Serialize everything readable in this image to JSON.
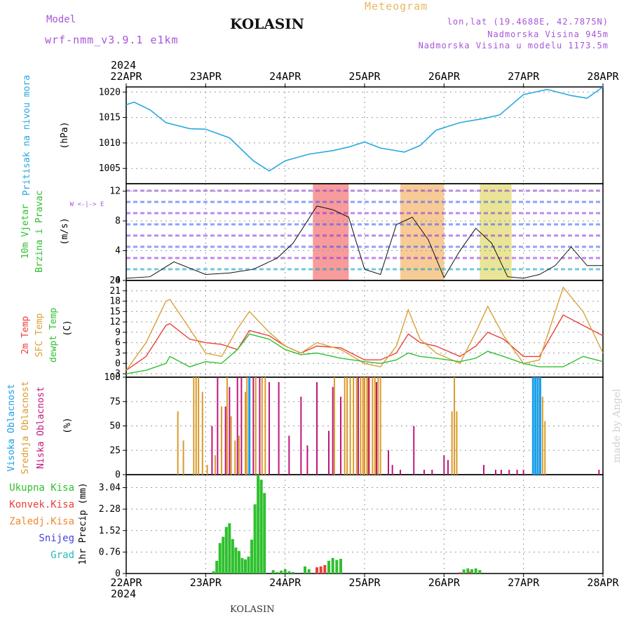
{
  "header": {
    "model_label": "Model",
    "model_name": "wrf-nmm_v3.9.1 e1km",
    "station": "KOLASIN",
    "meteogram_label": "Meteogram",
    "lonlat": "lon,lat (19.4688E, 42.7875N)",
    "altitude": "Nadmorska Visina 945m",
    "model_altitude": "Nadmorska Visina u modelu 1173.5m"
  },
  "footer_station": "KOLASIN",
  "watermark": "made by Angel",
  "colors": {
    "pressure": "#29a8e0",
    "temp2m": "#e8403a",
    "sfctemp": "#d9a13a",
    "dewpt": "#2ec02e",
    "high_cloud": "#1a9ee8",
    "mid_cloud": "#d99a2b",
    "low_cloud": "#c0167a",
    "precip_total": "#2ec02e",
    "precip_conv": "#e8403a",
    "precip_frozen": "#f08a30",
    "snow": "#4444dd",
    "graupel": "#22bbbb",
    "wind_speed_line": "#111111"
  },
  "time_axis": {
    "year_top": "2024",
    "year_bottom": "2024",
    "days": [
      "22APR",
      "23APR",
      "24APR",
      "25APR",
      "26APR",
      "27APR",
      "28APR"
    ]
  },
  "chart_data": [
    {
      "type": "line",
      "name": "pressure",
      "ylabels": [
        "Pritisak na nivou mora",
        "(hPa)"
      ],
      "ylim": [
        1002,
        1021
      ],
      "yticks": [
        1005,
        1010,
        1015,
        1020
      ],
      "x": [
        0,
        0.1,
        0.3,
        0.5,
        0.8,
        1.0,
        1.3,
        1.6,
        1.8,
        2.0,
        2.3,
        2.6,
        2.8,
        3.0,
        3.2,
        3.5,
        3.7,
        3.9,
        4.2,
        4.5,
        4.7,
        5.0,
        5.3,
        5.6,
        5.8,
        6.0
      ],
      "values": [
        1017.5,
        1018.0,
        1016.5,
        1014.0,
        1012.8,
        1012.7,
        1011.0,
        1006.5,
        1004.5,
        1006.5,
        1007.8,
        1008.5,
        1009.2,
        1010.2,
        1009.0,
        1008.2,
        1009.5,
        1012.5,
        1014.0,
        1014.8,
        1015.5,
        1019.5,
        1020.5,
        1019.3,
        1018.8,
        1021.0
      ],
      "grid": true
    },
    {
      "type": "line",
      "name": "wind_speed",
      "ylabels": [
        "10m Vjetar",
        "Brzina i Pravac",
        "(m/s)"
      ],
      "direction_legend": "W <-|-> E",
      "ylim": [
        0,
        13
      ],
      "yticks": [
        0,
        4,
        8,
        12
      ],
      "x": [
        0,
        0.3,
        0.6,
        1.0,
        1.3,
        1.6,
        1.9,
        2.1,
        2.4,
        2.6,
        2.8,
        3.0,
        3.2,
        3.4,
        3.6,
        3.8,
        4.0,
        4.2,
        4.4,
        4.6,
        4.8,
        5.0,
        5.2,
        5.4,
        5.6,
        5.8,
        6.0
      ],
      "values": [
        0.3,
        0.5,
        2.5,
        0.8,
        1.0,
        1.5,
        3.0,
        5.0,
        10.0,
        9.5,
        8.5,
        1.5,
        0.8,
        7.5,
        8.5,
        5.5,
        0.4,
        4.0,
        7.0,
        5.0,
        0.5,
        0.3,
        0.8,
        2.0,
        4.5,
        2.0,
        2.0
      ],
      "shaded_spans": [
        [
          2.35,
          2.8
        ],
        [
          3.45,
          4.0
        ],
        [
          4.45,
          4.85
        ]
      ],
      "grid": true
    },
    {
      "type": "line",
      "name": "temperature",
      "ylabels": [
        "2m Temp",
        "SFC Temp",
        "dewpt Temp",
        "(C)"
      ],
      "ylim": [
        -4,
        24
      ],
      "yticks": [
        -3,
        0,
        3,
        6,
        9,
        12,
        15,
        18,
        21,
        24
      ],
      "x": [
        0,
        0.25,
        0.5,
        0.55,
        0.8,
        1.0,
        1.2,
        1.4,
        1.55,
        1.8,
        2.0,
        2.2,
        2.4,
        2.7,
        3.0,
        3.2,
        3.4,
        3.55,
        3.7,
        3.9,
        4.2,
        4.4,
        4.55,
        4.75,
        5.0,
        5.2,
        5.5,
        5.75,
        6.0
      ],
      "series": [
        {
          "name": "2m Temp",
          "values": [
            -2,
            2,
            11,
            11.5,
            7,
            6,
            5.5,
            4,
            9.5,
            8,
            5,
            3,
            5,
            4.5,
            1,
            1,
            3,
            8.5,
            6,
            5,
            2,
            5,
            9,
            7,
            2,
            2,
            14,
            11,
            8
          ]
        },
        {
          "name": "SFC Temp",
          "values": [
            -2,
            6,
            18,
            18.5,
            10,
            3,
            2,
            10,
            15,
            9,
            5,
            3,
            6,
            4,
            0,
            -1,
            5,
            15.5,
            7,
            3,
            0,
            9,
            16.5,
            8,
            0,
            1,
            22,
            15,
            3
          ]
        },
        {
          "name": "dewpt Temp",
          "values": [
            -3,
            -2,
            0,
            2,
            -1,
            0.5,
            0,
            4,
            8.5,
            7,
            4,
            2.5,
            3,
            1.5,
            0.5,
            0,
            1,
            3,
            2,
            1.5,
            0.5,
            1.5,
            3.5,
            2,
            0,
            -1,
            -1,
            2,
            0.5
          ]
        }
      ],
      "grid": true
    },
    {
      "type": "bar",
      "name": "cloud_cover",
      "ylabels": [
        "Visoka Oblacnost",
        "Srednja Oblacnost",
        "Niska Oblacnost",
        "(%)"
      ],
      "ylim": [
        0,
        100
      ],
      "yticks": [
        0,
        25,
        50,
        75,
        100
      ],
      "series": [
        {
          "name": "Visoka Oblacnost",
          "x": [
            1.55,
            5.12,
            5.15,
            5.18,
            5.21
          ],
          "values": [
            100,
            100,
            100,
            100,
            100
          ]
        },
        {
          "name": "Srednja Oblacnost",
          "x": [
            0.65,
            0.72,
            0.85,
            0.88,
            0.91,
            0.96,
            1.02,
            1.12,
            1.2,
            1.27,
            1.32,
            1.37,
            1.42,
            1.5,
            1.52,
            1.63,
            1.71,
            1.75,
            2.62,
            2.75,
            2.78,
            2.82,
            2.86,
            2.9,
            2.95,
            2.98,
            3.0,
            3.03,
            3.06,
            3.1,
            3.13,
            3.17,
            3.2,
            4.1,
            4.13,
            4.16,
            5.24,
            5.27
          ],
          "values": [
            65,
            35,
            100,
            100,
            100,
            85,
            10,
            20,
            70,
            100,
            60,
            35,
            40,
            85,
            100,
            100,
            100,
            100,
            100,
            100,
            100,
            100,
            100,
            100,
            100,
            100,
            100,
            100,
            100,
            100,
            100,
            100,
            100,
            65,
            100,
            65,
            80,
            55
          ]
        },
        {
          "name": "Niska Oblacnost",
          "x": [
            1.08,
            1.15,
            1.25,
            1.3,
            1.4,
            1.45,
            1.6,
            1.68,
            1.8,
            1.92,
            2.05,
            2.2,
            2.28,
            2.4,
            2.55,
            2.6,
            2.7,
            2.92,
            3.05,
            3.15,
            3.3,
            3.35,
            3.45,
            3.62,
            3.75,
            3.85,
            4.0,
            4.05,
            4.5,
            4.65,
            4.72,
            4.82,
            4.92,
            5.0,
            5.95
          ],
          "values": [
            50,
            100,
            70,
            90,
            100,
            100,
            100,
            100,
            95,
            95,
            40,
            80,
            30,
            95,
            45,
            90,
            80,
            100,
            100,
            95,
            25,
            10,
            5,
            50,
            5,
            5,
            20,
            15,
            10,
            5,
            5,
            5,
            5,
            5,
            5
          ]
        }
      ],
      "grid": true
    },
    {
      "type": "bar",
      "name": "precipitation",
      "ylabels": [
        "1hr Precip (mm)"
      ],
      "legend": [
        "Ukupna Kisa",
        "Konvek.Kisa",
        "Zaledj.Kisa",
        "Snijeg",
        "Grad"
      ],
      "ylim": [
        0,
        3.5
      ],
      "yticks": [
        0,
        0.76,
        1.52,
        2.28,
        3.04
      ],
      "ytick_labels": [
        "0",
        "0.76",
        "1.52",
        "2.28",
        "3.04"
      ],
      "series": [
        {
          "name": "Ukupna Kisa",
          "x": [
            1.1,
            1.14,
            1.18,
            1.22,
            1.26,
            1.3,
            1.34,
            1.38,
            1.42,
            1.46,
            1.5,
            1.54,
            1.58,
            1.62,
            1.66,
            1.7,
            1.74,
            1.85,
            1.9,
            1.95,
            2.0,
            2.05,
            2.1,
            2.25,
            2.3,
            2.55,
            2.6,
            2.65,
            2.7,
            4.25,
            4.3,
            4.35,
            4.4,
            4.45
          ],
          "values": [
            0.08,
            0.45,
            1.08,
            1.3,
            1.65,
            1.78,
            1.22,
            0.92,
            0.8,
            0.55,
            0.5,
            0.6,
            1.2,
            2.45,
            3.5,
            3.32,
            2.85,
            0.12,
            0.05,
            0.1,
            0.15,
            0.08,
            0.05,
            0.25,
            0.15,
            0.45,
            0.55,
            0.48,
            0.52,
            0.14,
            0.18,
            0.15,
            0.18,
            0.12
          ]
        },
        {
          "name": "Konvek.Kisa",
          "x": [
            2.4,
            2.45,
            2.5,
            4.2,
            4.32
          ],
          "values": [
            0.22,
            0.25,
            0.3,
            0.04,
            0.06
          ]
        }
      ],
      "grid": true
    }
  ]
}
